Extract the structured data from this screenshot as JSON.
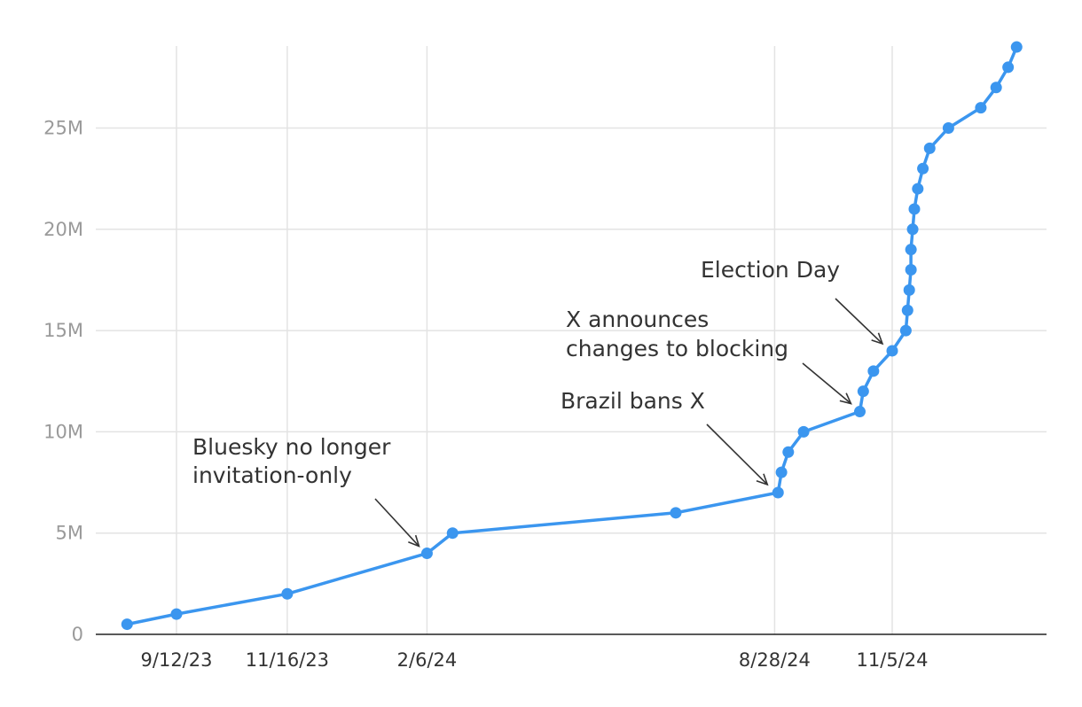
{
  "chart_data": {
    "type": "line",
    "title": "",
    "xlabel": "",
    "ylabel": "",
    "color": "#3b96ef",
    "grid": true,
    "ylim": [
      0,
      29000000
    ],
    "y_ticks": [
      {
        "value": 0,
        "label": "0"
      },
      {
        "value": 5000000,
        "label": "5M"
      },
      {
        "value": 10000000,
        "label": "10M"
      },
      {
        "value": 15000000,
        "label": "15M"
      },
      {
        "value": 20000000,
        "label": "20M"
      },
      {
        "value": 25000000,
        "label": "25M"
      }
    ],
    "x_ticks": [
      {
        "date": "2023-09-12",
        "label": "9/12/23"
      },
      {
        "date": "2023-11-16",
        "label": "11/16/23"
      },
      {
        "date": "2024-02-06",
        "label": "2/6/24"
      },
      {
        "date": "2024-08-28",
        "label": "8/28/24"
      },
      {
        "date": "2024-11-05",
        "label": "11/5/24"
      }
    ],
    "series": [
      {
        "points": [
          {
            "x": "2023-08-14",
            "y": 500000
          },
          {
            "x": "2023-09-12",
            "y": 1000000
          },
          {
            "x": "2023-11-16",
            "y": 2000000
          },
          {
            "x": "2024-02-06",
            "y": 4000000
          },
          {
            "x": "2024-02-21",
            "y": 5000000
          },
          {
            "x": "2024-07-01",
            "y": 6000000
          },
          {
            "x": "2024-08-30",
            "y": 7000000
          },
          {
            "x": "2024-09-01",
            "y": 8000000
          },
          {
            "x": "2024-09-05",
            "y": 9000000
          },
          {
            "x": "2024-09-14",
            "y": 10000000
          },
          {
            "x": "2024-10-17",
            "y": 11000000
          },
          {
            "x": "2024-10-19",
            "y": 12000000
          },
          {
            "x": "2024-10-25",
            "y": 13000000
          },
          {
            "x": "2024-11-05",
            "y": 14000000
          },
          {
            "x": "2024-11-13",
            "y": 15000000
          },
          {
            "x": "2024-11-14",
            "y": 16000000
          },
          {
            "x": "2024-11-15",
            "y": 17000000
          },
          {
            "x": "2024-11-16",
            "y": 18000000
          },
          {
            "x": "2024-11-16",
            "y": 19000000
          },
          {
            "x": "2024-11-17",
            "y": 20000000
          },
          {
            "x": "2024-11-18",
            "y": 21000000
          },
          {
            "x": "2024-11-20",
            "y": 22000000
          },
          {
            "x": "2024-11-23",
            "y": 23000000
          },
          {
            "x": "2024-11-27",
            "y": 24000000
          },
          {
            "x": "2024-12-08",
            "y": 25000000
          },
          {
            "x": "2024-12-27",
            "y": 26000000
          },
          {
            "x": "2025-01-05",
            "y": 27000000
          },
          {
            "x": "2025-01-12",
            "y": 28000000
          },
          {
            "x": "2025-01-17",
            "y": 29000000
          }
        ]
      }
    ],
    "annotations": [
      {
        "lines": [
          "Bluesky no longer",
          "invitation-only"
        ],
        "date": "2024-02-06",
        "y": 4000000
      },
      {
        "lines": [
          "Brazil bans X"
        ],
        "date": "2024-08-30",
        "y": 7000000
      },
      {
        "lines": [
          "X announces",
          "changes to blocking"
        ],
        "date": "2024-10-17",
        "y": 11000000
      },
      {
        "lines": [
          "Election Day"
        ],
        "date": "2024-11-05",
        "y": 14000000
      }
    ]
  }
}
